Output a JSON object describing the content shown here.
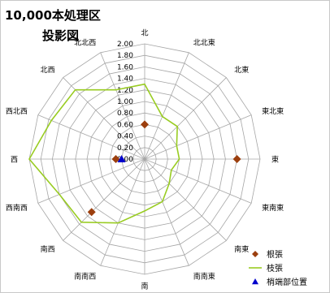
{
  "title_line1": "10,000本処理区",
  "title_line2": "投影図",
  "chart_data": {
    "type": "radar",
    "directions": [
      "北",
      "北北東",
      "北東",
      "東北東",
      "東",
      "東南東",
      "南東",
      "南南東",
      "南",
      "南南西",
      "南西",
      "西南西",
      "西",
      "西北西",
      "北西",
      "北北西"
    ],
    "radial_ticks": [
      "0.00",
      "0.20",
      "0.40",
      "0.60",
      "0.80",
      "1.00",
      "1.20",
      "1.40",
      "1.60",
      "1.80",
      "2.00"
    ],
    "rlim": [
      0,
      2.0
    ],
    "series": [
      {
        "name": "根張",
        "kind": "markers",
        "marker": "diamond",
        "color": "#9c3f0e",
        "values": [
          0.6,
          null,
          null,
          null,
          1.6,
          null,
          null,
          null,
          null,
          null,
          1.3,
          null,
          0.5,
          null,
          null,
          null
        ]
      },
      {
        "name": "枝張",
        "kind": "line",
        "color": "#99cc22",
        "values": [
          1.3,
          0.8,
          0.8,
          0.6,
          0.6,
          0.5,
          0.6,
          0.8,
          0.9,
          1.2,
          1.55,
          1.6,
          2.0,
          1.75,
          1.7,
          1.3
        ]
      },
      {
        "name": "梢端部位置",
        "kind": "markers",
        "marker": "triangle",
        "color": "#0000cc",
        "values": [
          null,
          null,
          null,
          null,
          null,
          null,
          null,
          null,
          null,
          null,
          null,
          null,
          0.4,
          null,
          null,
          null
        ]
      }
    ],
    "grid": true,
    "legend_position": "bottom-right"
  }
}
